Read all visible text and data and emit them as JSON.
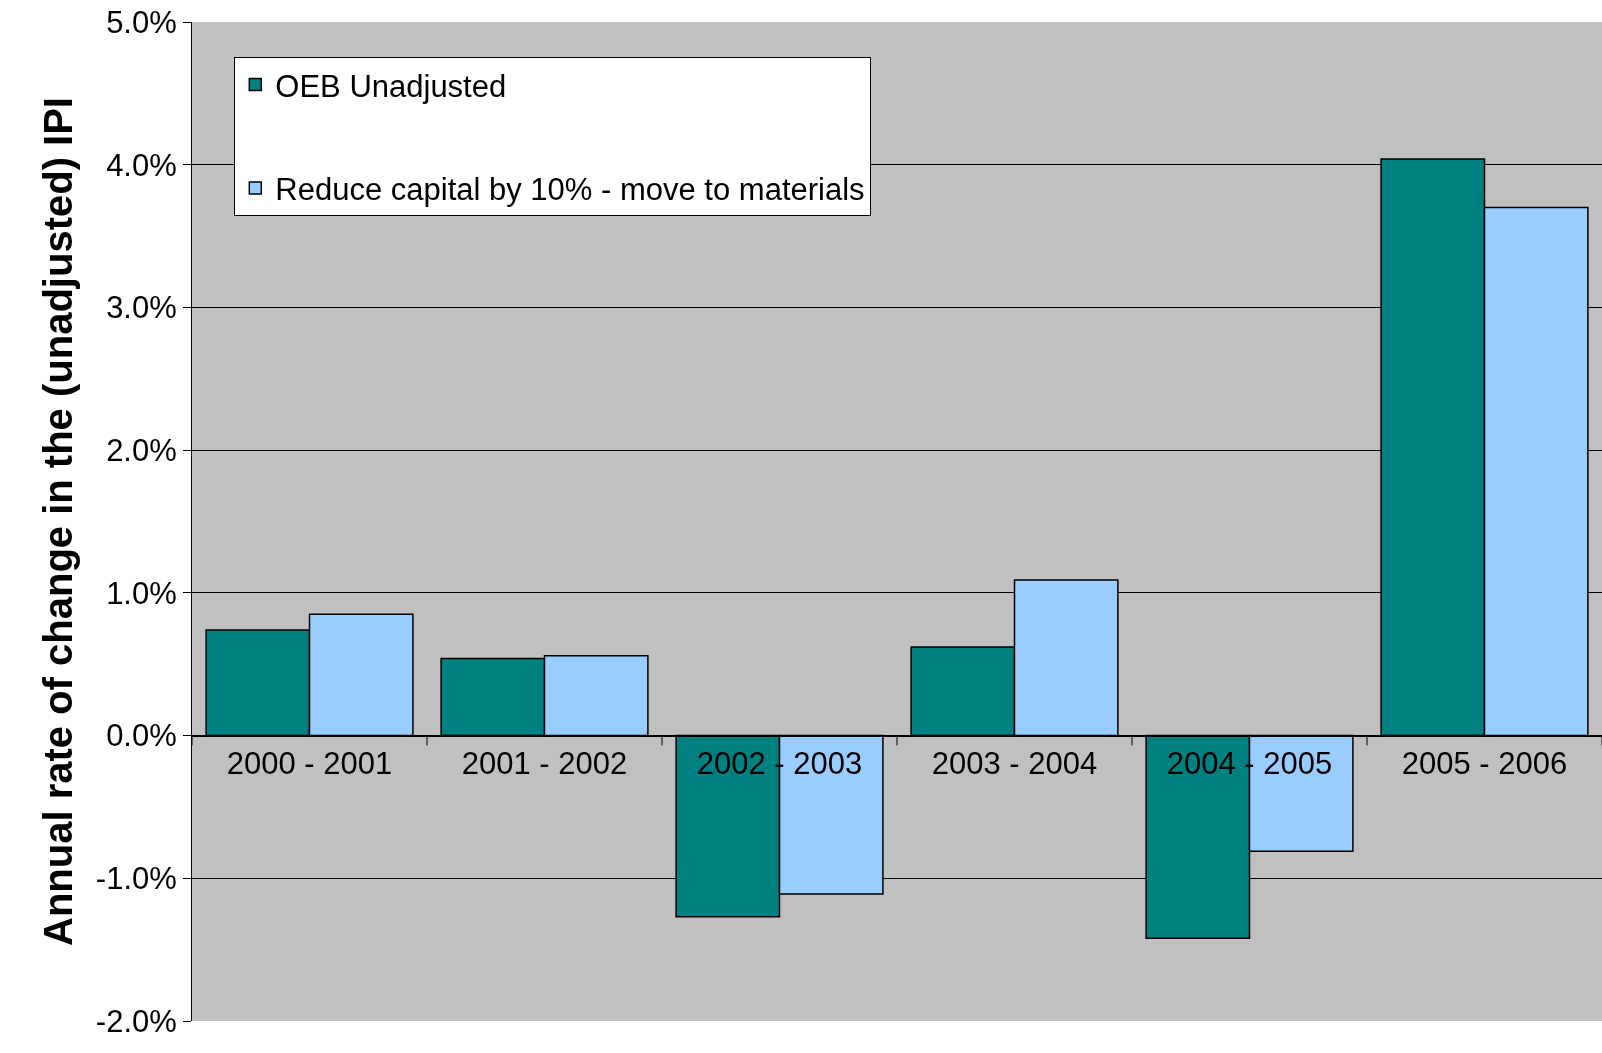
{
  "chart_data": {
    "type": "bar",
    "ylabel": "Annual rate of change in the (unadjusted) IPI",
    "categories": [
      "2000 - 2001",
      "2001 - 2002",
      "2002 - 2003",
      "2003 - 2004",
      "2004 - 2005",
      "2005 - 2006"
    ],
    "series": [
      {
        "name": "OEB Unadjusted",
        "color": "#008080",
        "values": [
          0.74,
          0.54,
          -1.27,
          0.62,
          -1.42,
          4.04
        ]
      },
      {
        "name": "Reduce capital by 10% - move to materials",
        "color": "#99ccff",
        "values": [
          0.85,
          0.56,
          -1.11,
          1.09,
          -0.81,
          3.7
        ]
      }
    ],
    "ylim": [
      -2,
      5
    ],
    "yticks": [
      {
        "value": -2,
        "label": "-2.0%"
      },
      {
        "value": -1,
        "label": "-1.0%"
      },
      {
        "value": 0,
        "label": "0.0%"
      },
      {
        "value": 1,
        "label": "1.0%"
      },
      {
        "value": 2,
        "label": "2.0%"
      },
      {
        "value": 3,
        "label": "3.0%"
      },
      {
        "value": 4,
        "label": "4.0%"
      },
      {
        "value": 5,
        "label": "5.0%"
      }
    ],
    "grid": "y",
    "legend": "top left"
  }
}
